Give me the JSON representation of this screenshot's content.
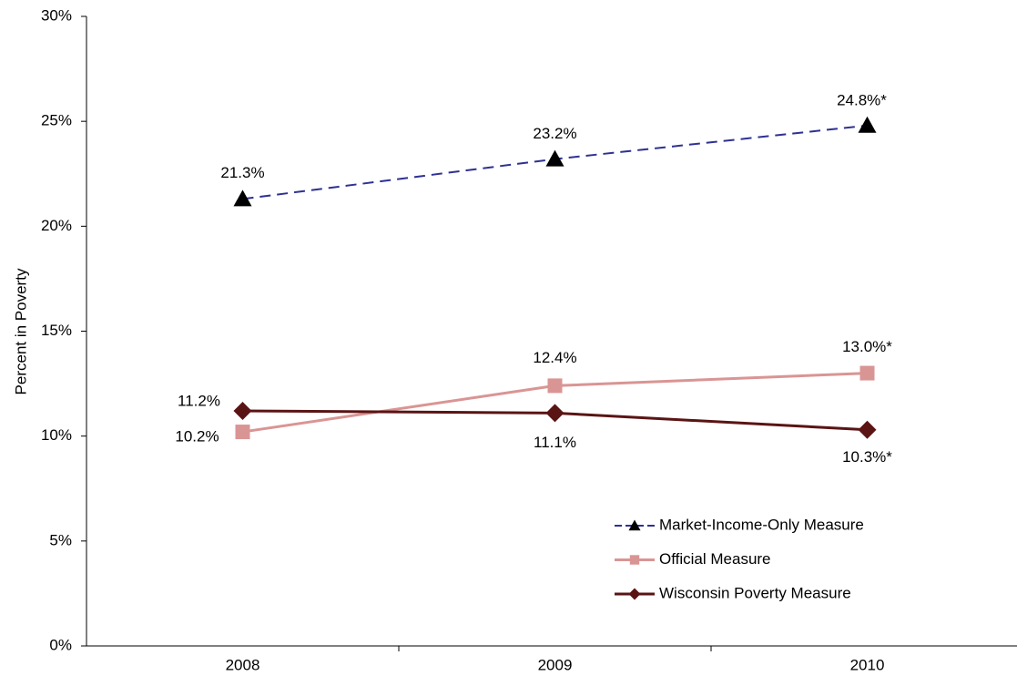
{
  "chart_data": {
    "type": "line",
    "ylabel": "Percent in Poverty",
    "categories": [
      "2008",
      "2009",
      "2010"
    ],
    "ylim": [
      0,
      30
    ],
    "yticks": [
      {
        "value": 0,
        "label": "0%"
      },
      {
        "value": 5,
        "label": "5%"
      },
      {
        "value": 10,
        "label": "10%"
      },
      {
        "value": 15,
        "label": "15%"
      },
      {
        "value": 20,
        "label": "20%"
      },
      {
        "value": 25,
        "label": "25%"
      },
      {
        "value": 30,
        "label": "30%"
      }
    ],
    "grid": false,
    "legend": "lower right",
    "series": [
      {
        "name": "Market-Income-Only Measure",
        "color": "#2e3192",
        "line_style": "dashed",
        "marker": "triangle",
        "marker_color": "#000000",
        "values": [
          21.3,
          23.2,
          24.8
        ],
        "value_labels": [
          "21.3%",
          "23.2%",
          "24.8%*"
        ]
      },
      {
        "name": "Official Measure",
        "color": "#d99594",
        "line_style": "solid",
        "marker": "square",
        "marker_color": "#d99594",
        "values": [
          10.2,
          12.4,
          13.0
        ],
        "value_labels": [
          "10.2%",
          "12.4%",
          "13.0%*"
        ]
      },
      {
        "name": "Wisconsin Poverty Measure",
        "color": "#5a1414",
        "line_style": "solid",
        "marker": "diamond",
        "marker_color": "#5a1414",
        "values": [
          11.2,
          11.1,
          10.3
        ],
        "value_labels": [
          "11.2%",
          "11.1%",
          "10.3%*"
        ]
      }
    ]
  }
}
